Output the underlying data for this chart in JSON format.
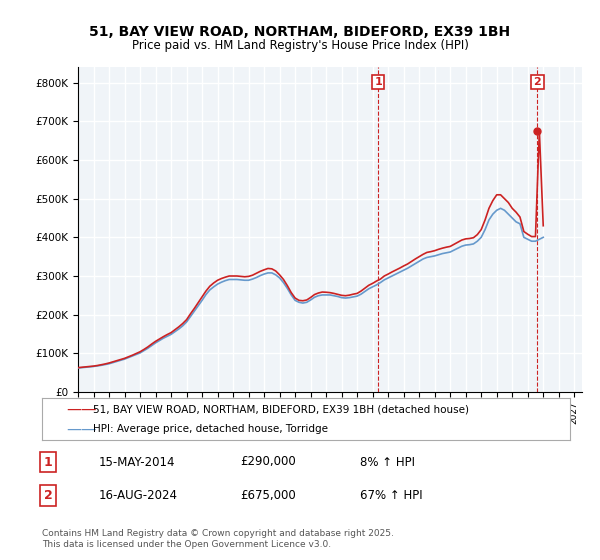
{
  "title": "51, BAY VIEW ROAD, NORTHAM, BIDEFORD, EX39 1BH",
  "subtitle": "Price paid vs. HM Land Registry's House Price Index (HPI)",
  "ylabel_ticks": [
    "£0",
    "£100K",
    "£200K",
    "£300K",
    "£400K",
    "£500K",
    "£600K",
    "£700K",
    "£800K"
  ],
  "ylim": [
    0,
    840000
  ],
  "xlim_start": 1995.0,
  "xlim_end": 2027.5,
  "hpi_color": "#6699cc",
  "price_color": "#cc2222",
  "marker1_x": 2014.37,
  "marker2_x": 2024.63,
  "marker1_label": "1",
  "marker2_label": "2",
  "transaction1_date": "15-MAY-2014",
  "transaction1_price": "£290,000",
  "transaction1_hpi": "8% ↑ HPI",
  "transaction2_date": "16-AUG-2024",
  "transaction2_price": "£675,000",
  "transaction2_hpi": "67% ↑ HPI",
  "legend_label1": "51, BAY VIEW ROAD, NORTHAM, BIDEFORD, EX39 1BH (detached house)",
  "legend_label2": "HPI: Average price, detached house, Torridge",
  "footer": "Contains HM Land Registry data © Crown copyright and database right 2025.\nThis data is licensed under the Open Government Licence v3.0.",
  "bg_color": "#f0f4f8",
  "grid_color": "#ffffff",
  "hpi_data_x": [
    1995.0,
    1995.25,
    1995.5,
    1995.75,
    1996.0,
    1996.25,
    1996.5,
    1996.75,
    1997.0,
    1997.25,
    1997.5,
    1997.75,
    1998.0,
    1998.25,
    1998.5,
    1998.75,
    1999.0,
    1999.25,
    1999.5,
    1999.75,
    2000.0,
    2000.25,
    2000.5,
    2000.75,
    2001.0,
    2001.25,
    2001.5,
    2001.75,
    2002.0,
    2002.25,
    2002.5,
    2002.75,
    2003.0,
    2003.25,
    2003.5,
    2003.75,
    2004.0,
    2004.25,
    2004.5,
    2004.75,
    2005.0,
    2005.25,
    2005.5,
    2005.75,
    2006.0,
    2006.25,
    2006.5,
    2006.75,
    2007.0,
    2007.25,
    2007.5,
    2007.75,
    2008.0,
    2008.25,
    2008.5,
    2008.75,
    2009.0,
    2009.25,
    2009.5,
    2009.75,
    2010.0,
    2010.25,
    2010.5,
    2010.75,
    2011.0,
    2011.25,
    2011.5,
    2011.75,
    2012.0,
    2012.25,
    2012.5,
    2012.75,
    2013.0,
    2013.25,
    2013.5,
    2013.75,
    2014.0,
    2014.25,
    2014.5,
    2014.75,
    2015.0,
    2015.25,
    2015.5,
    2015.75,
    2016.0,
    2016.25,
    2016.5,
    2016.75,
    2017.0,
    2017.25,
    2017.5,
    2017.75,
    2018.0,
    2018.25,
    2018.5,
    2018.75,
    2019.0,
    2019.25,
    2019.5,
    2019.75,
    2020.0,
    2020.25,
    2020.5,
    2020.75,
    2021.0,
    2021.25,
    2021.5,
    2021.75,
    2022.0,
    2022.25,
    2022.5,
    2022.75,
    2023.0,
    2023.25,
    2023.5,
    2023.75,
    2024.0,
    2024.25,
    2024.5,
    2024.75,
    2025.0
  ],
  "hpi_data_y": [
    62000,
    63000,
    64000,
    65000,
    66000,
    67500,
    69000,
    71000,
    73000,
    76000,
    79000,
    82000,
    85000,
    89000,
    93000,
    97000,
    101000,
    107000,
    113000,
    120000,
    127000,
    133000,
    139000,
    144000,
    149000,
    156000,
    163000,
    171000,
    181000,
    195000,
    209000,
    223000,
    237000,
    252000,
    264000,
    272000,
    279000,
    284000,
    288000,
    291000,
    291000,
    291000,
    290000,
    289000,
    289000,
    292000,
    296000,
    301000,
    305000,
    308000,
    308000,
    303000,
    295000,
    283000,
    268000,
    251000,
    237000,
    232000,
    230000,
    232000,
    238000,
    245000,
    249000,
    251000,
    251000,
    251000,
    249000,
    247000,
    244000,
    243000,
    244000,
    246000,
    248000,
    253000,
    260000,
    267000,
    272000,
    277000,
    283000,
    290000,
    295000,
    300000,
    305000,
    310000,
    315000,
    320000,
    326000,
    332000,
    338000,
    344000,
    348000,
    350000,
    352000,
    355000,
    358000,
    360000,
    362000,
    367000,
    372000,
    377000,
    380000,
    381000,
    383000,
    390000,
    400000,
    420000,
    445000,
    460000,
    470000,
    475000,
    470000,
    460000,
    450000,
    440000,
    435000,
    400000,
    395000,
    390000,
    390000,
    395000,
    400000
  ],
  "price_data_x": [
    1995.0,
    1995.25,
    1995.5,
    1995.75,
    1996.0,
    1996.25,
    1996.5,
    1996.75,
    1997.0,
    1997.25,
    1997.5,
    1997.75,
    1998.0,
    1998.25,
    1998.5,
    1998.75,
    1999.0,
    1999.25,
    1999.5,
    1999.75,
    2000.0,
    2000.25,
    2000.5,
    2000.75,
    2001.0,
    2001.25,
    2001.5,
    2001.75,
    2002.0,
    2002.25,
    2002.5,
    2002.75,
    2003.0,
    2003.25,
    2003.5,
    2003.75,
    2004.0,
    2004.25,
    2004.5,
    2004.75,
    2005.0,
    2005.25,
    2005.5,
    2005.75,
    2006.0,
    2006.25,
    2006.5,
    2006.75,
    2007.0,
    2007.25,
    2007.5,
    2007.75,
    2008.0,
    2008.25,
    2008.5,
    2008.75,
    2009.0,
    2009.25,
    2009.5,
    2009.75,
    2010.0,
    2010.25,
    2010.5,
    2010.75,
    2011.0,
    2011.25,
    2011.5,
    2011.75,
    2012.0,
    2012.25,
    2012.5,
    2012.75,
    2013.0,
    2013.25,
    2013.5,
    2013.75,
    2014.0,
    2014.25,
    2014.5,
    2014.75,
    2015.0,
    2015.25,
    2015.5,
    2015.75,
    2016.0,
    2016.25,
    2016.5,
    2016.75,
    2017.0,
    2017.25,
    2017.5,
    2017.75,
    2018.0,
    2018.25,
    2018.5,
    2018.75,
    2019.0,
    2019.25,
    2019.5,
    2019.75,
    2020.0,
    2020.25,
    2020.5,
    2020.75,
    2021.0,
    2021.25,
    2021.5,
    2021.75,
    2022.0,
    2022.25,
    2022.5,
    2022.75,
    2023.0,
    2023.25,
    2023.5,
    2023.75,
    2024.0,
    2024.25,
    2024.5,
    2024.75,
    2025.0
  ],
  "price_data_y": [
    63000,
    64000,
    65000,
    66000,
    67000,
    68500,
    70500,
    72500,
    75000,
    78000,
    81000,
    84000,
    87000,
    91000,
    95000,
    99500,
    104000,
    110000,
    116500,
    124000,
    131000,
    137000,
    143000,
    148500,
    153500,
    161000,
    168500,
    177000,
    187000,
    202000,
    216000,
    231000,
    246000,
    261000,
    273500,
    282000,
    289000,
    293500,
    297000,
    300000,
    300000,
    300000,
    299000,
    298000,
    299000,
    302000,
    307000,
    312000,
    316000,
    319500,
    318500,
    313000,
    303000,
    291000,
    275000,
    257000,
    243000,
    237000,
    236000,
    238000,
    244500,
    252000,
    256000,
    258500,
    258000,
    257000,
    255000,
    252500,
    250000,
    249000,
    250500,
    253000,
    255000,
    261000,
    268500,
    276000,
    281000,
    287000,
    292000,
    300000,
    305000,
    310500,
    315500,
    320500,
    326000,
    331000,
    337500,
    344000,
    350000,
    356000,
    361000,
    363000,
    365500,
    369000,
    372000,
    374500,
    376500,
    382000,
    387500,
    393000,
    396000,
    397000,
    399000,
    407000,
    420000,
    445000,
    475000,
    495000,
    510000,
    510000,
    500000,
    490000,
    475000,
    465000,
    452500,
    415000,
    408000,
    402000,
    402000,
    675000,
    430000
  ]
}
